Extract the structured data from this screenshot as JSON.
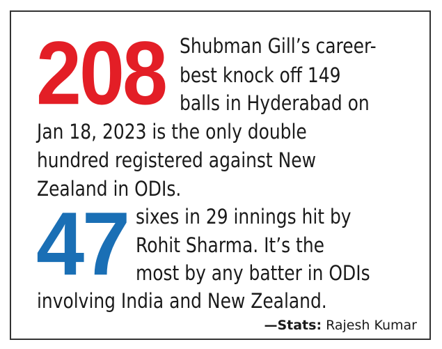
{
  "stat1": {
    "number": "208",
    "color": "#e31e26",
    "lines": [
      "Shubman Gill’s career-",
      "best knock off 149",
      "balls in Hyderabad on",
      "Jan 18, 2023 is the only double",
      "hundred registered against New",
      "Zealand in ODIs."
    ]
  },
  "stat2": {
    "number": "47",
    "color": "#1a6fb5",
    "lines": [
      "sixes in 29 innings hit by",
      "Rohit Sharma. It’s the",
      "most by any batter in ODIs",
      "involving India and New Zealand."
    ]
  },
  "credit": {
    "label": "—Stats:",
    "name": "Rajesh Kumar"
  }
}
